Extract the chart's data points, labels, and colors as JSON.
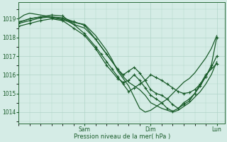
{
  "bg_color": "#d5ece6",
  "grid_color": "#b0d4c8",
  "line_color": "#1a5c2a",
  "marker_color": "#1a5c2a",
  "xlabel": "Pression niveau de la mer( hPa )",
  "yticks": [
    1014,
    1015,
    1016,
    1017,
    1018,
    1019
  ],
  "ylim": [
    1013.4,
    1019.9
  ],
  "xlim": [
    0,
    75
  ],
  "xtick_positions": [
    24,
    48,
    72
  ],
  "xtick_labels": [
    "Sam",
    "Dim",
    "Lun"
  ],
  "series": [
    {
      "x": [
        0,
        1,
        2,
        3,
        4,
        6,
        8,
        10,
        12,
        14,
        16,
        18,
        20,
        22,
        24,
        26,
        28,
        30,
        32,
        34,
        36,
        38,
        40,
        42,
        44,
        46,
        48,
        50,
        52,
        54,
        56,
        58,
        60,
        62,
        64,
        66,
        68,
        70,
        72
      ],
      "y": [
        1019.0,
        1019.1,
        1019.2,
        1019.25,
        1019.3,
        1019.25,
        1019.2,
        1019.15,
        1019.1,
        1019.05,
        1019.0,
        1018.9,
        1018.8,
        1018.75,
        1018.7,
        1018.4,
        1018.1,
        1017.7,
        1017.3,
        1016.8,
        1016.2,
        1015.8,
        1015.4,
        1014.8,
        1014.2,
        1014.0,
        1014.1,
        1014.3,
        1014.5,
        1014.7,
        1015.0,
        1015.3,
        1015.6,
        1015.8,
        1016.1,
        1016.5,
        1016.9,
        1017.4,
        1018.1
      ],
      "marker": false,
      "lw": 0.9
    },
    {
      "x": [
        0,
        2,
        4,
        6,
        8,
        10,
        12,
        14,
        16,
        18,
        20,
        22,
        24,
        26,
        28,
        30,
        32,
        34,
        36,
        38,
        40,
        42,
        44,
        46,
        48,
        50,
        52,
        54,
        56,
        58,
        60,
        62,
        64,
        66,
        68,
        70,
        72
      ],
      "y": [
        1018.85,
        1018.9,
        1019.0,
        1019.05,
        1019.1,
        1019.1,
        1019.05,
        1019.0,
        1018.95,
        1018.85,
        1018.7,
        1018.6,
        1018.5,
        1018.2,
        1017.9,
        1017.5,
        1017.1,
        1016.7,
        1016.3,
        1015.9,
        1015.6,
        1015.4,
        1015.2,
        1014.9,
        1014.5,
        1014.35,
        1014.2,
        1014.1,
        1014.0,
        1014.1,
        1014.3,
        1014.5,
        1014.8,
        1015.1,
        1015.5,
        1016.0,
        1016.7
      ],
      "marker": false,
      "lw": 0.9
    },
    {
      "x": [
        0,
        4,
        8,
        12,
        16,
        20,
        24,
        28,
        32,
        36,
        38,
        40,
        42,
        44,
        46,
        48,
        50,
        52,
        54,
        56,
        58,
        60,
        62,
        64,
        66,
        68,
        70,
        72
      ],
      "y": [
        1018.75,
        1018.9,
        1019.05,
        1019.1,
        1019.05,
        1018.85,
        1018.65,
        1017.9,
        1017.1,
        1016.3,
        1016.0,
        1016.2,
        1016.4,
        1016.1,
        1015.7,
        1015.2,
        1015.0,
        1014.9,
        1014.7,
        1014.4,
        1014.2,
        1014.4,
        1014.6,
        1015.0,
        1015.4,
        1015.9,
        1016.4,
        1017.0
      ],
      "marker": true,
      "lw": 0.9
    },
    {
      "x": [
        0,
        4,
        8,
        12,
        16,
        20,
        24,
        28,
        32,
        36,
        38,
        40,
        42,
        44,
        46,
        48,
        50,
        52,
        54,
        56,
        58,
        60,
        62,
        64,
        66,
        68,
        72
      ],
      "y": [
        1018.6,
        1018.75,
        1018.9,
        1019.0,
        1018.9,
        1018.5,
        1018.1,
        1017.4,
        1016.5,
        1015.8,
        1015.6,
        1015.7,
        1016.0,
        1015.7,
        1015.3,
        1014.9,
        1014.7,
        1014.5,
        1014.2,
        1014.05,
        1014.2,
        1014.5,
        1014.7,
        1015.0,
        1015.5,
        1016.0,
        1016.6
      ],
      "marker": true,
      "lw": 0.9
    },
    {
      "x": [
        0,
        4,
        8,
        12,
        16,
        20,
        24,
        28,
        30,
        32,
        34,
        36,
        38,
        40,
        42,
        44,
        46,
        48,
        50,
        52,
        54,
        56,
        58,
        60,
        62,
        64,
        66,
        68,
        70,
        72
      ],
      "y": [
        1018.8,
        1019.0,
        1019.1,
        1019.2,
        1019.15,
        1018.7,
        1018.2,
        1017.5,
        1017.1,
        1016.7,
        1016.3,
        1015.9,
        1015.5,
        1015.1,
        1015.3,
        1015.5,
        1015.7,
        1016.0,
        1015.85,
        1015.7,
        1015.5,
        1015.3,
        1015.1,
        1015.0,
        1015.05,
        1015.2,
        1015.5,
        1015.9,
        1016.5,
        1018.0
      ],
      "marker": true,
      "lw": 0.9
    }
  ],
  "figsize": [
    3.2,
    2.0
  ],
  "dpi": 100
}
